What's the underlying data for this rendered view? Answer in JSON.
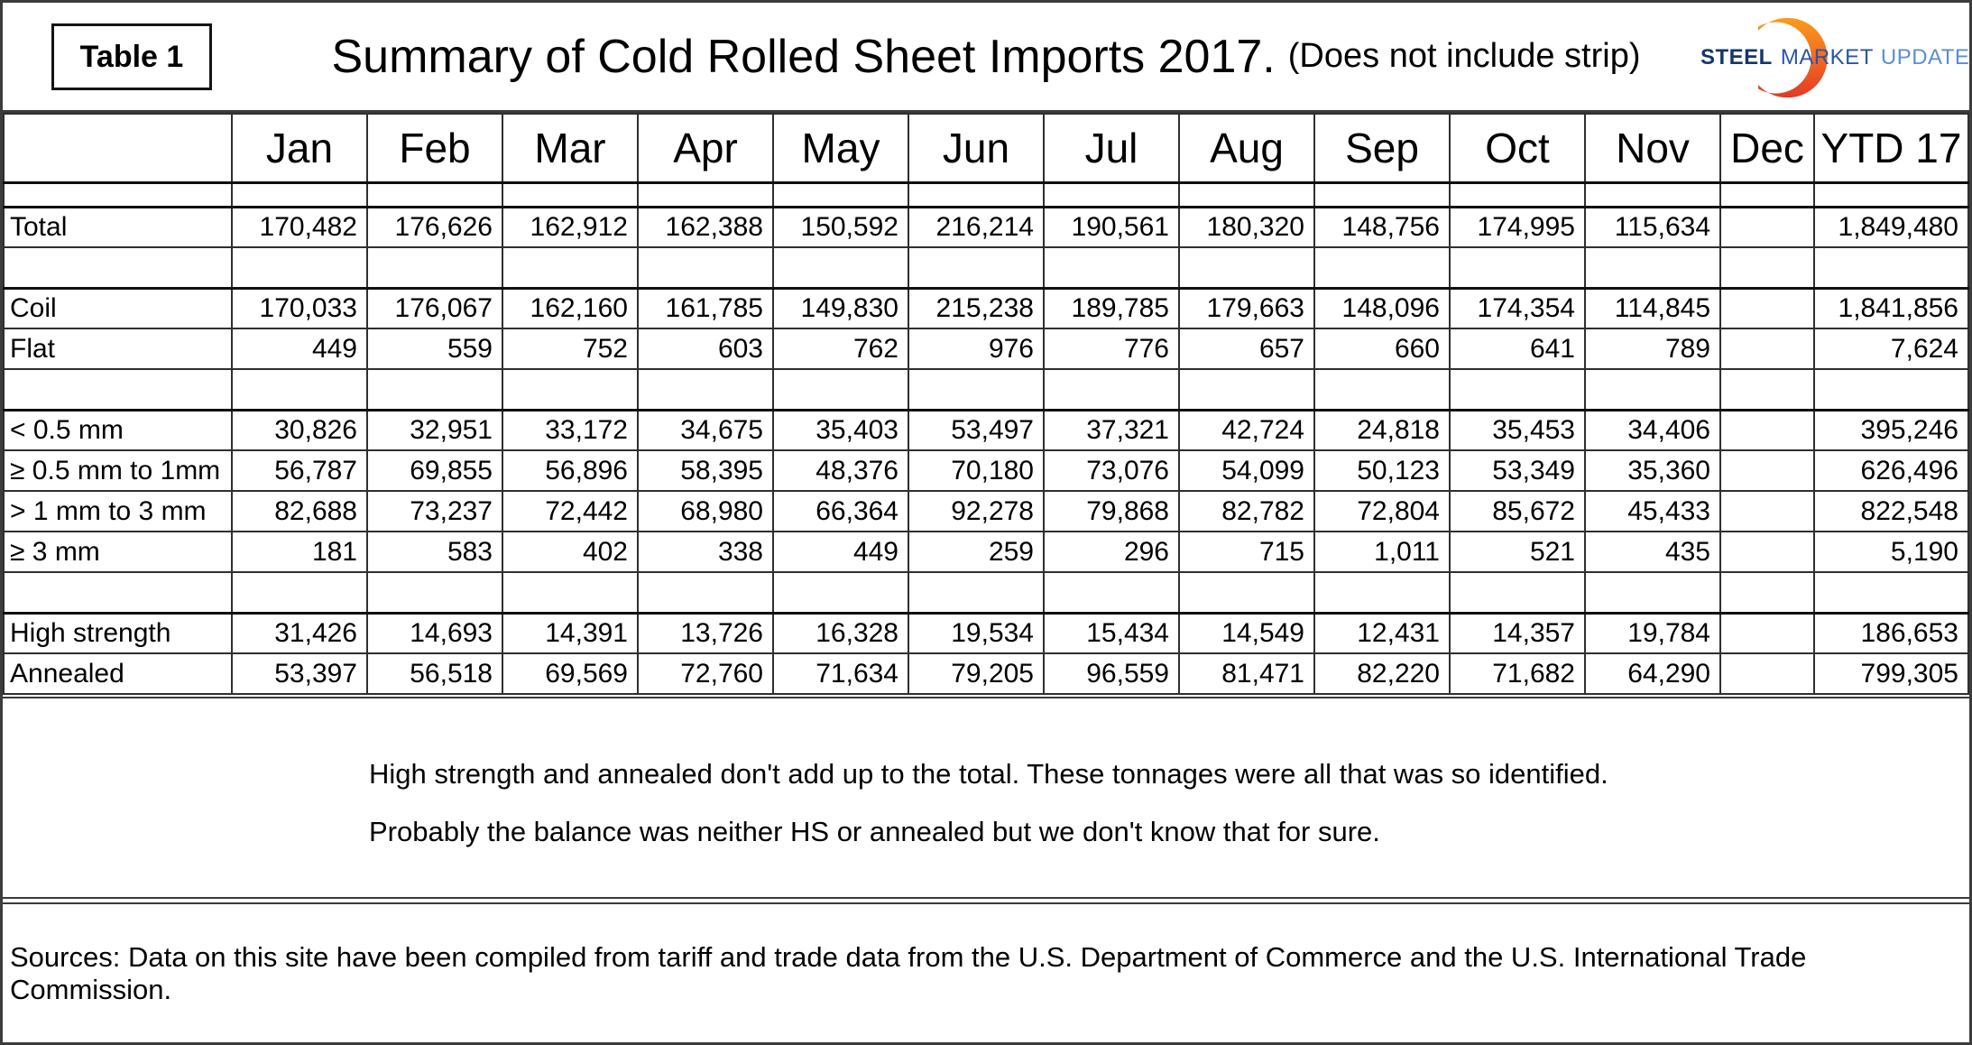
{
  "header": {
    "table_label": "Table 1",
    "title_main": "Summary of Cold Rolled Sheet Imports 2017.",
    "title_sub": "(Does not include strip)",
    "logo": {
      "steel": "STEEL",
      "market": "MARKET",
      "update": "UPDATE",
      "steel_color": "#16356c",
      "market_color": "#2a55a4",
      "update_color": "#5c8ed6",
      "crescent_top_color": "#f89c1c",
      "crescent_bottom_color": "#e03b24"
    }
  },
  "table": {
    "columns": [
      "",
      "Jan",
      "Feb",
      "Mar",
      "Apr",
      "May",
      "Jun",
      "Jul",
      "Aug",
      "Sep",
      "Oct",
      "Nov",
      "Dec",
      "YTD 17"
    ],
    "rows": [
      {
        "type": "spacer-sm"
      },
      {
        "type": "data",
        "sep": true,
        "label": "Total",
        "values": [
          "170,482",
          "176,626",
          "162,912",
          "162,388",
          "150,592",
          "216,214",
          "190,561",
          "180,320",
          "148,756",
          "174,995",
          "115,634",
          "",
          "1,849,480"
        ]
      },
      {
        "type": "spacer"
      },
      {
        "type": "data",
        "sep": true,
        "label": "Coil",
        "values": [
          "170,033",
          "176,067",
          "162,160",
          "161,785",
          "149,830",
          "215,238",
          "189,785",
          "179,663",
          "148,096",
          "174,354",
          "114,845",
          "",
          "1,841,856"
        ]
      },
      {
        "type": "data",
        "label": "Flat",
        "values": [
          "449",
          "559",
          "752",
          "603",
          "762",
          "976",
          "776",
          "657",
          "660",
          "641",
          "789",
          "",
          "7,624"
        ]
      },
      {
        "type": "spacer"
      },
      {
        "type": "data",
        "sep": true,
        "label": "< 0.5 mm",
        "values": [
          "30,826",
          "32,951",
          "33,172",
          "34,675",
          "35,403",
          "53,497",
          "37,321",
          "42,724",
          "24,818",
          "35,453",
          "34,406",
          "",
          "395,246"
        ]
      },
      {
        "type": "data",
        "label": "≥ 0.5 mm to 1mm",
        "values": [
          "56,787",
          "69,855",
          "56,896",
          "58,395",
          "48,376",
          "70,180",
          "73,076",
          "54,099",
          "50,123",
          "53,349",
          "35,360",
          "",
          "626,496"
        ]
      },
      {
        "type": "data",
        "label": "> 1 mm to 3 mm",
        "values": [
          "82,688",
          "73,237",
          "72,442",
          "68,980",
          "66,364",
          "92,278",
          "79,868",
          "82,782",
          "72,804",
          "85,672",
          "45,433",
          "",
          "822,548"
        ]
      },
      {
        "type": "data",
        "label": "≥ 3 mm",
        "values": [
          "181",
          "583",
          "402",
          "338",
          "449",
          "259",
          "296",
          "715",
          "1,011",
          "521",
          "435",
          "",
          "5,190"
        ]
      },
      {
        "type": "spacer"
      },
      {
        "type": "data",
        "sep": true,
        "label": "High strength",
        "values": [
          "31,426",
          "14,693",
          "14,391",
          "13,726",
          "16,328",
          "19,534",
          "15,434",
          "14,549",
          "12,431",
          "14,357",
          "19,784",
          "",
          "186,653"
        ]
      },
      {
        "type": "data",
        "label": "Annealed",
        "values": [
          "53,397",
          "56,518",
          "69,569",
          "72,760",
          "71,634",
          "79,205",
          "96,559",
          "81,471",
          "82,220",
          "71,682",
          "64,290",
          "",
          "799,305"
        ]
      }
    ]
  },
  "notes": {
    "line1": "High strength and annealed don't add up to the total. These tonnages were all that was so identified.",
    "line2": "Probably the balance was neither HS or annealed but we don't know that for sure."
  },
  "sources": "Sources: Data on this site have been compiled from tariff and trade data from the U.S. Department of Commerce and the U.S. International Trade Commission."
}
